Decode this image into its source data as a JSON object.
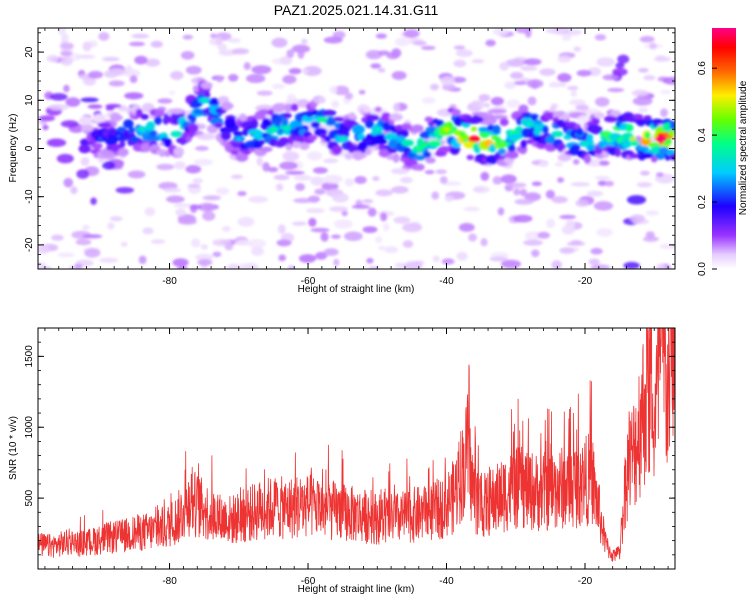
{
  "title": "PAZ1.2025.021.14.31.G11",
  "chart_data": [
    {
      "type": "heatmap",
      "xlabel": "Height of straight line (km)",
      "ylabel": "Frequency (Hz)",
      "xlim": [
        -99,
        -7
      ],
      "ylim": [
        -25,
        25
      ],
      "x_ticks": [
        -80,
        -60,
        -40,
        -20
      ],
      "y_ticks": [
        -20,
        -10,
        0,
        10,
        20
      ],
      "colorbar": {
        "label": "Normalized spectral amplitude",
        "range": [
          0.0,
          0.72
        ],
        "ticks": [
          "0.0",
          "0.2",
          "0.4",
          "0.6"
        ],
        "colormap": "rainbow (white-violet-blue-cyan-green-yellow-red-magenta)"
      },
      "ridge": {
        "description": "Dominant high-amplitude band near 0 to 5 Hz across all heights",
        "peaks": [
          {
            "height_km": -90,
            "freq_hz": 2,
            "amp": 0.18
          },
          {
            "height_km": -84,
            "freq_hz": 4,
            "amp": 0.3
          },
          {
            "height_km": -79,
            "freq_hz": 3,
            "amp": 0.32
          },
          {
            "height_km": -75,
            "freq_hz": 10,
            "amp": 0.3
          },
          {
            "height_km": -70,
            "freq_hz": 2,
            "amp": 0.25
          },
          {
            "height_km": -65,
            "freq_hz": 4,
            "amp": 0.32
          },
          {
            "height_km": -58,
            "freq_hz": 6,
            "amp": 0.34
          },
          {
            "height_km": -55,
            "freq_hz": 2,
            "amp": 0.3
          },
          {
            "height_km": -50,
            "freq_hz": 4,
            "amp": 0.3
          },
          {
            "height_km": -44,
            "freq_hz": 0,
            "amp": 0.35
          },
          {
            "height_km": -40,
            "freq_hz": 4,
            "amp": 0.45
          },
          {
            "height_km": -36,
            "freq_hz": 2,
            "amp": 0.65
          },
          {
            "height_km": -32,
            "freq_hz": 1,
            "amp": 0.4
          },
          {
            "height_km": -28,
            "freq_hz": 5,
            "amp": 0.3
          },
          {
            "height_km": -24,
            "freq_hz": 3,
            "amp": 0.32
          },
          {
            "height_km": -20,
            "freq_hz": 1,
            "amp": 0.3
          },
          {
            "height_km": -17,
            "freq_hz": 3,
            "amp": 0.38
          },
          {
            "height_km": -9,
            "freq_hz": 2,
            "amp": 0.7
          }
        ]
      }
    },
    {
      "type": "line",
      "xlabel": "Height of straight line (km)",
      "ylabel": "SNR (10 * v/v)",
      "xlim": [
        -99,
        -7
      ],
      "ylim": [
        0,
        1700
      ],
      "x_ticks": [
        -80,
        -60,
        -40,
        -20
      ],
      "y_ticks": [
        500,
        1000,
        1500
      ],
      "series": [
        {
          "color": "#ee3333",
          "x": [
            -99,
            -97,
            -95,
            -93,
            -91,
            -89,
            -87,
            -85,
            -83,
            -81,
            -79,
            -77,
            -75,
            -73,
            -71,
            -69,
            -67,
            -65,
            -63,
            -61,
            -59,
            -57,
            -55,
            -53,
            -51,
            -49,
            -47,
            -45,
            -43,
            -41,
            -39,
            -37,
            -36,
            -35,
            -33,
            -31,
            -29,
            -27,
            -25,
            -23,
            -21,
            -19,
            -17,
            -16,
            -15,
            -14,
            -13,
            -12,
            -11,
            -10,
            -9,
            -8,
            -7
          ],
          "y": [
            150,
            140,
            160,
            155,
            170,
            190,
            200,
            220,
            230,
            240,
            300,
            420,
            360,
            310,
            300,
            330,
            360,
            380,
            370,
            390,
            380,
            360,
            350,
            330,
            320,
            300,
            310,
            330,
            340,
            360,
            440,
            700,
            450,
            380,
            420,
            480,
            500,
            470,
            480,
            500,
            520,
            560,
            150,
            80,
            100,
            600,
            700,
            900,
            1100,
            850,
            1300,
            1100,
            1450
          ],
          "band": {
            "description": "High-frequency noisy envelope around the trend",
            "low_frac": 0.55,
            "high_frac": 1.75
          }
        }
      ]
    }
  ]
}
